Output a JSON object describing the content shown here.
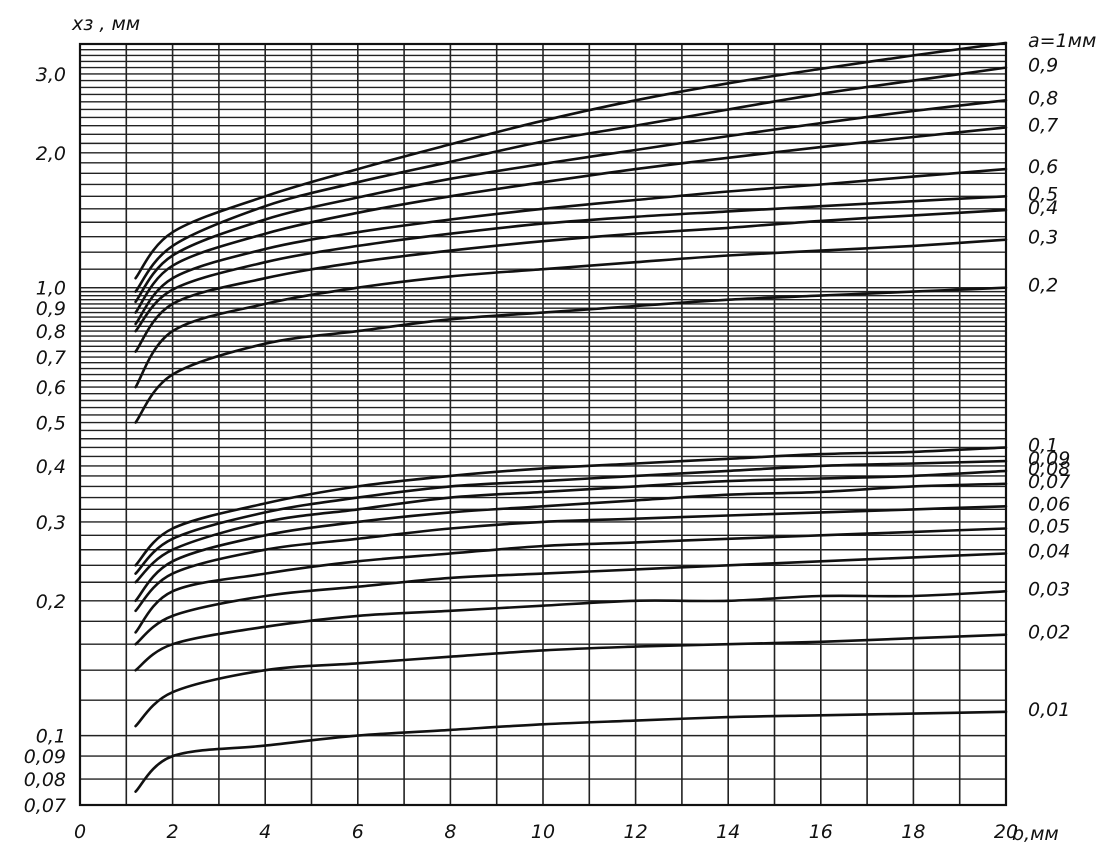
{
  "chart_data": {
    "type": "line",
    "title": "",
    "xlabel": "b,мм",
    "ylabel": "xз , мм",
    "x_scale": "linear",
    "y_scale": "log",
    "xlim": [
      0,
      20
    ],
    "ylim": [
      0.07,
      3.5
    ],
    "grid": true,
    "x_ticks": [
      0,
      2,
      4,
      6,
      8,
      10,
      12,
      14,
      16,
      18,
      20
    ],
    "x_tick_labels": [
      "0",
      "2",
      "4",
      "6",
      "8",
      "10",
      "12",
      "14",
      "16",
      "18",
      "20"
    ],
    "y_ticks": [
      0.07,
      0.08,
      0.09,
      0.1,
      0.2,
      0.3,
      0.4,
      0.5,
      0.6,
      0.7,
      0.8,
      0.9,
      1.0,
      2.0,
      3.0
    ],
    "y_tick_labels": [
      "0,07",
      "0,08",
      "0,09",
      "0,1",
      "0,2",
      "0,3",
      "0,4",
      "0,5",
      "0,6",
      "0,7",
      "0,8",
      "0,9",
      "1,0",
      "2,0",
      "3,0"
    ],
    "series_label_prefix": "a=",
    "series_label_unit": "мм",
    "series": [
      {
        "name": "1",
        "x": [
          1.2,
          2,
          4,
          6,
          8,
          10,
          12,
          14,
          16,
          18,
          20
        ],
        "y": [
          1.05,
          1.33,
          1.6,
          1.84,
          2.09,
          2.36,
          2.62,
          2.86,
          3.08,
          3.3,
          3.52
        ]
      },
      {
        "name": "0,9",
        "x": [
          1.2,
          2,
          4,
          6,
          8,
          10,
          12,
          14,
          16,
          18,
          20
        ],
        "y": [
          0.98,
          1.24,
          1.52,
          1.72,
          1.91,
          2.12,
          2.3,
          2.5,
          2.71,
          2.9,
          3.1
        ]
      },
      {
        "name": "0,8",
        "x": [
          1.2,
          2,
          4,
          6,
          8,
          10,
          12,
          14,
          16,
          18,
          20
        ],
        "y": [
          0.93,
          1.18,
          1.42,
          1.59,
          1.75,
          1.89,
          2.03,
          2.18,
          2.33,
          2.48,
          2.62
        ]
      },
      {
        "name": "0,7",
        "x": [
          1.2,
          2,
          4,
          6,
          8,
          10,
          12,
          14,
          16,
          18,
          20
        ],
        "y": [
          0.88,
          1.12,
          1.32,
          1.47,
          1.6,
          1.72,
          1.84,
          1.95,
          2.06,
          2.17,
          2.28
        ]
      },
      {
        "name": "0,6",
        "x": [
          1.2,
          2,
          4,
          6,
          8,
          10,
          12,
          14,
          16,
          18,
          20
        ],
        "y": [
          0.83,
          1.05,
          1.22,
          1.33,
          1.42,
          1.5,
          1.57,
          1.64,
          1.7,
          1.77,
          1.84
        ]
      },
      {
        "name": "0,5",
        "x": [
          1.2,
          2,
          4,
          6,
          8,
          10,
          12,
          14,
          16,
          18,
          20
        ],
        "y": [
          0.8,
          0.99,
          1.14,
          1.24,
          1.32,
          1.39,
          1.44,
          1.48,
          1.52,
          1.56,
          1.6
        ]
      },
      {
        "name": "0,4",
        "x": [
          1.2,
          2,
          4,
          6,
          8,
          10,
          12,
          14,
          16,
          18,
          20
        ],
        "y": [
          0.72,
          0.92,
          1.05,
          1.14,
          1.21,
          1.27,
          1.32,
          1.36,
          1.41,
          1.45,
          1.49
        ]
      },
      {
        "name": "0,3",
        "x": [
          1.2,
          2,
          4,
          6,
          8,
          10,
          12,
          14,
          16,
          18,
          20
        ],
        "y": [
          0.6,
          0.8,
          0.92,
          1.0,
          1.06,
          1.1,
          1.14,
          1.18,
          1.21,
          1.24,
          1.28
        ]
      },
      {
        "name": "0,2",
        "x": [
          1.2,
          2,
          4,
          6,
          8,
          10,
          12,
          14,
          16,
          18,
          20
        ],
        "y": [
          0.5,
          0.64,
          0.75,
          0.8,
          0.85,
          0.88,
          0.91,
          0.94,
          0.96,
          0.98,
          1.0
        ]
      },
      {
        "name": "0,1",
        "x": [
          1.2,
          2,
          4,
          6,
          8,
          10,
          12,
          14,
          16,
          18,
          20
        ],
        "y": [
          0.24,
          0.29,
          0.33,
          0.36,
          0.38,
          0.395,
          0.405,
          0.415,
          0.425,
          0.43,
          0.44
        ]
      },
      {
        "name": "0,09",
        "x": [
          1.2,
          2,
          4,
          6,
          8,
          10,
          12,
          14,
          16,
          18,
          20
        ],
        "y": [
          0.23,
          0.275,
          0.315,
          0.34,
          0.36,
          0.37,
          0.38,
          0.39,
          0.4,
          0.405,
          0.41
        ]
      },
      {
        "name": "0,08",
        "x": [
          1.2,
          2,
          4,
          6,
          8,
          10,
          12,
          14,
          16,
          18,
          20
        ],
        "y": [
          0.22,
          0.26,
          0.3,
          0.32,
          0.34,
          0.35,
          0.36,
          0.37,
          0.375,
          0.38,
          0.39
        ]
      },
      {
        "name": "0,07",
        "x": [
          1.2,
          2,
          4,
          6,
          8,
          10,
          12,
          14,
          16,
          18,
          20
        ],
        "y": [
          0.2,
          0.245,
          0.28,
          0.3,
          0.315,
          0.325,
          0.335,
          0.345,
          0.35,
          0.36,
          0.365
        ]
      },
      {
        "name": "0,06",
        "x": [
          1.2,
          2,
          4,
          6,
          8,
          10,
          12,
          14,
          16,
          18,
          20
        ],
        "y": [
          0.19,
          0.23,
          0.26,
          0.275,
          0.29,
          0.3,
          0.305,
          0.31,
          0.315,
          0.32,
          0.325
        ]
      },
      {
        "name": "0,05",
        "x": [
          1.2,
          2,
          4,
          6,
          8,
          10,
          12,
          14,
          16,
          18,
          20
        ],
        "y": [
          0.17,
          0.21,
          0.23,
          0.245,
          0.255,
          0.265,
          0.27,
          0.275,
          0.28,
          0.285,
          0.29
        ]
      },
      {
        "name": "0,04",
        "x": [
          1.2,
          2,
          4,
          6,
          8,
          10,
          12,
          14,
          16,
          18,
          20
        ],
        "y": [
          0.16,
          0.185,
          0.205,
          0.215,
          0.225,
          0.23,
          0.235,
          0.24,
          0.245,
          0.25,
          0.255
        ]
      },
      {
        "name": "0,03",
        "x": [
          1.2,
          2,
          4,
          6,
          8,
          10,
          12,
          14,
          16,
          18,
          20
        ],
        "y": [
          0.14,
          0.16,
          0.175,
          0.185,
          0.19,
          0.195,
          0.2,
          0.2,
          0.205,
          0.205,
          0.21
        ]
      },
      {
        "name": "0,02",
        "x": [
          1.2,
          2,
          4,
          6,
          8,
          10,
          12,
          14,
          16,
          18,
          20
        ],
        "y": [
          0.105,
          0.125,
          0.14,
          0.145,
          0.15,
          0.155,
          0.158,
          0.16,
          0.162,
          0.165,
          0.168
        ]
      },
      {
        "name": "0,01",
        "x": [
          1.2,
          2,
          4,
          6,
          8,
          10,
          12,
          14,
          16,
          18,
          20
        ],
        "y": [
          0.075,
          0.09,
          0.095,
          0.1,
          0.103,
          0.106,
          0.108,
          0.11,
          0.111,
          0.112,
          0.113
        ]
      }
    ]
  }
}
